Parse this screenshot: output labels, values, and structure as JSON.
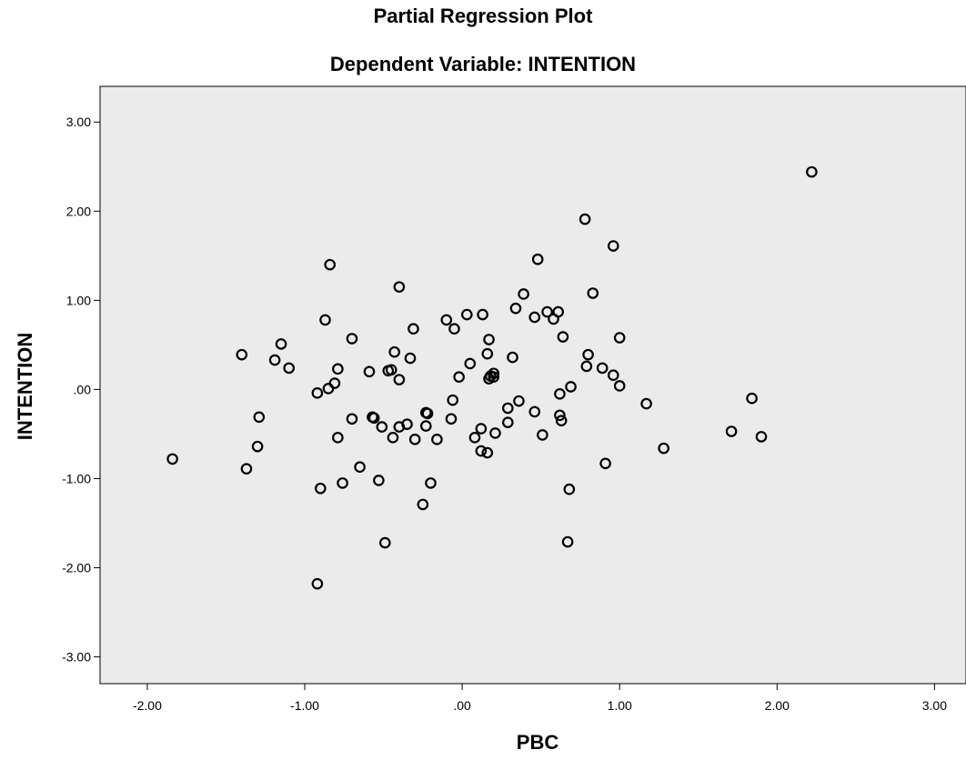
{
  "chart_data": {
    "type": "scatter",
    "title": "Partial Regression Plot",
    "subtitle": "Dependent Variable: INTENTION",
    "xlabel": "PBC",
    "ylabel": "INTENTION",
    "xlim": [
      -2.3,
      3.2
    ],
    "ylim": [
      -3.3,
      3.4
    ],
    "xticks": [
      -2,
      -1,
      0,
      1,
      2,
      3
    ],
    "xtick_labels": [
      "-2.00",
      "-1.00",
      ".00",
      "1.00",
      "2.00",
      "3.00"
    ],
    "yticks": [
      3,
      2,
      1,
      0,
      -1,
      -2,
      -3
    ],
    "ytick_labels": [
      "3.00",
      "2.00",
      "1.00",
      ".00",
      "-1.00",
      "-2.00",
      "-3.00"
    ],
    "grid": false,
    "plot_background": "#ebebeb",
    "marker_color": "#000000",
    "points": [
      [
        -1.84,
        -0.78
      ],
      [
        -1.4,
        0.39
      ],
      [
        -1.37,
        -0.89
      ],
      [
        -1.3,
        -0.64
      ],
      [
        -1.29,
        -0.31
      ],
      [
        -1.19,
        0.33
      ],
      [
        -1.15,
        0.51
      ],
      [
        -1.1,
        0.24
      ],
      [
        -0.92,
        -0.04
      ],
      [
        -0.9,
        -1.11
      ],
      [
        -0.92,
        -2.18
      ],
      [
        -0.87,
        0.78
      ],
      [
        -0.85,
        0.01
      ],
      [
        -0.84,
        1.4
      ],
      [
        -0.81,
        0.07
      ],
      [
        -0.79,
        0.23
      ],
      [
        -0.79,
        -0.54
      ],
      [
        -0.76,
        -1.05
      ],
      [
        -0.7,
        0.57
      ],
      [
        -0.7,
        -0.33
      ],
      [
        -0.65,
        -0.87
      ],
      [
        -0.59,
        0.2
      ],
      [
        -0.57,
        -0.31
      ],
      [
        -0.56,
        -0.32
      ],
      [
        -0.53,
        -1.02
      ],
      [
        -0.51,
        -0.42
      ],
      [
        -0.49,
        -1.72
      ],
      [
        -0.47,
        0.21
      ],
      [
        -0.45,
        0.22
      ],
      [
        -0.44,
        -0.54
      ],
      [
        -0.43,
        0.42
      ],
      [
        -0.4,
        0.11
      ],
      [
        -0.4,
        -0.42
      ],
      [
        -0.4,
        1.15
      ],
      [
        -0.35,
        -0.39
      ],
      [
        -0.33,
        0.35
      ],
      [
        -0.31,
        0.68
      ],
      [
        -0.3,
        -0.56
      ],
      [
        -0.25,
        -1.29
      ],
      [
        -0.23,
        -0.26
      ],
      [
        -0.23,
        -0.41
      ],
      [
        -0.22,
        -0.27
      ],
      [
        -0.2,
        -1.05
      ],
      [
        -0.16,
        -0.56
      ],
      [
        -0.1,
        0.78
      ],
      [
        -0.07,
        -0.33
      ],
      [
        -0.06,
        -0.12
      ],
      [
        -0.05,
        0.68
      ],
      [
        -0.02,
        0.14
      ],
      [
        0.03,
        0.84
      ],
      [
        0.05,
        0.29
      ],
      [
        0.08,
        -0.54
      ],
      [
        0.12,
        -0.44
      ],
      [
        0.12,
        -0.69
      ],
      [
        0.13,
        0.84
      ],
      [
        0.16,
        0.4
      ],
      [
        0.16,
        -0.71
      ],
      [
        0.17,
        0.56
      ],
      [
        0.17,
        0.12
      ],
      [
        0.18,
        0.15
      ],
      [
        0.2,
        0.18
      ],
      [
        0.2,
        0.14
      ],
      [
        0.21,
        -0.49
      ],
      [
        0.29,
        -0.21
      ],
      [
        0.29,
        -0.37
      ],
      [
        0.32,
        0.36
      ],
      [
        0.34,
        0.91
      ],
      [
        0.36,
        -0.13
      ],
      [
        0.39,
        1.07
      ],
      [
        0.46,
        0.81
      ],
      [
        0.46,
        -0.25
      ],
      [
        0.48,
        1.46
      ],
      [
        0.51,
        -0.51
      ],
      [
        0.54,
        0.87
      ],
      [
        0.58,
        0.79
      ],
      [
        0.61,
        0.87
      ],
      [
        0.62,
        -0.29
      ],
      [
        0.62,
        -0.05
      ],
      [
        0.63,
        -0.35
      ],
      [
        0.64,
        0.59
      ],
      [
        0.67,
        -1.71
      ],
      [
        0.68,
        -1.12
      ],
      [
        0.69,
        0.03
      ],
      [
        0.78,
        1.91
      ],
      [
        0.79,
        0.26
      ],
      [
        0.8,
        0.39
      ],
      [
        0.83,
        1.08
      ],
      [
        0.89,
        0.24
      ],
      [
        0.91,
        -0.83
      ],
      [
        0.96,
        0.16
      ],
      [
        0.96,
        1.61
      ],
      [
        1.0,
        0.04
      ],
      [
        1.0,
        0.58
      ],
      [
        1.17,
        -0.16
      ],
      [
        1.28,
        -0.66
      ],
      [
        1.71,
        -0.47
      ],
      [
        1.84,
        -0.1
      ],
      [
        1.9,
        -0.53
      ],
      [
        2.22,
        2.44
      ]
    ]
  }
}
